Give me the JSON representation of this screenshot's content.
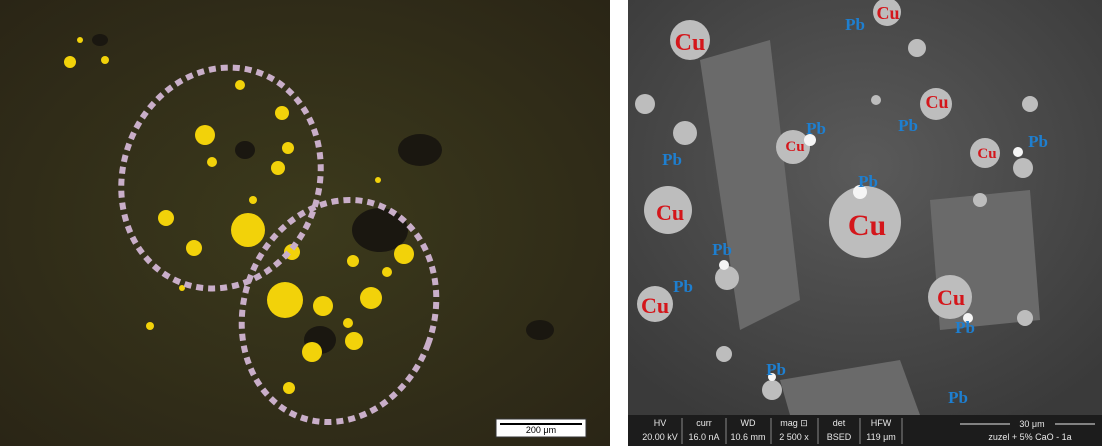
{
  "left_image": {
    "scale_bar": "200 μm"
  },
  "right_image": {
    "labels": [
      "Cu",
      "Cu",
      "Pb",
      "Cu",
      "Pb",
      "Pb",
      "Cu",
      "Cu",
      "Pb",
      "Pb",
      "Pb",
      "Cu",
      "Cu",
      "Pb",
      "Pb",
      "Cu",
      "Cu",
      "Pb",
      "Pb",
      "Pb"
    ],
    "info_bar": {
      "columns": [
        {
          "head": "HV",
          "value": "20.00 kV"
        },
        {
          "head": "curr",
          "value": "16.0 nA"
        },
        {
          "head": "WD",
          "value": "10.6 mm"
        },
        {
          "head": "mag ⊡",
          "value": "2 500 x"
        },
        {
          "head": "det",
          "value": "BSED"
        },
        {
          "head": "HFW",
          "value": "119 μm"
        }
      ],
      "scale_bar": "30 μm",
      "sample": "zuzel + 5% CaO - 1a"
    }
  }
}
